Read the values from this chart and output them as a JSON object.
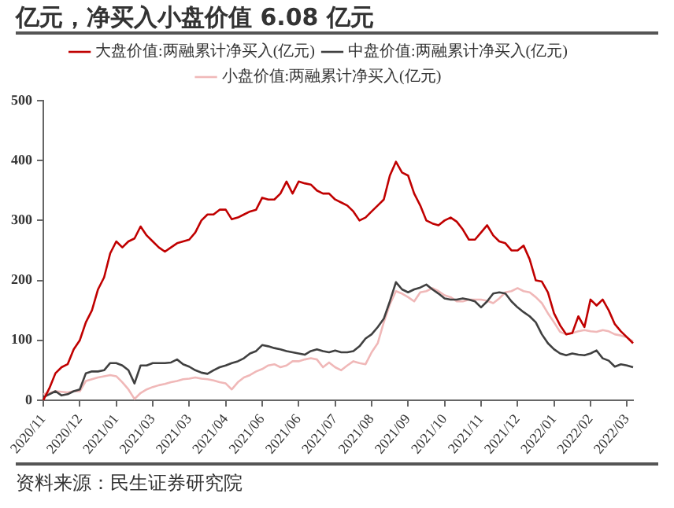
{
  "chart_data": {
    "type": "line",
    "title": "亿元，净买入小盘价值 6.08 亿元",
    "annotations": [
      "资料来源：民生证券研究院"
    ],
    "categories": [
      "2020/11",
      null,
      null,
      null,
      null,
      null,
      "2020/12",
      null,
      null,
      null,
      null,
      null,
      "2021/01",
      null,
      null,
      null,
      null,
      null,
      "2021/03",
      null,
      null,
      null,
      null,
      null,
      "2021/03",
      null,
      null,
      null,
      null,
      null,
      "2021/04",
      null,
      null,
      null,
      null,
      null,
      "2021/06",
      null,
      null,
      null,
      null,
      null,
      "2021/06",
      null,
      null,
      null,
      null,
      null,
      "2021/07",
      null,
      null,
      null,
      null,
      null,
      "2021/08",
      null,
      null,
      null,
      null,
      null,
      "2021/09",
      null,
      null,
      null,
      null,
      null,
      "2021/10",
      null,
      null,
      null,
      null,
      null,
      "2021/11",
      null,
      null,
      null,
      null,
      null,
      "2021/12",
      null,
      null,
      null,
      null,
      null,
      "2022/01",
      null,
      null,
      null,
      null,
      null,
      "2022/02",
      null,
      null,
      null,
      null,
      null,
      "2022/03",
      null
    ],
    "series": [
      {
        "name": "大盘价值:两融累计净买入(亿元)",
        "color": "#c00000",
        "values": [
          0,
          20,
          45,
          55,
          60,
          85,
          100,
          130,
          150,
          185,
          205,
          245,
          265,
          255,
          265,
          270,
          290,
          275,
          265,
          255,
          248,
          255,
          262,
          265,
          268,
          280,
          300,
          310,
          310,
          318,
          318,
          302,
          305,
          310,
          315,
          318,
          338,
          335,
          335,
          345,
          365,
          345,
          365,
          362,
          360,
          350,
          345,
          345,
          335,
          330,
          325,
          315,
          300,
          305,
          315,
          325,
          335,
          375,
          398,
          380,
          375,
          345,
          325,
          300,
          295,
          292,
          300,
          305,
          298,
          285,
          268,
          268,
          280,
          292,
          275,
          265,
          262,
          250,
          250,
          258,
          235,
          200,
          198,
          180,
          145,
          125,
          110,
          112,
          140,
          122,
          168,
          158,
          168,
          150,
          127,
          115,
          105,
          95
        ]
      },
      {
        "name": "中盘价值:两融累计净买入(亿元)",
        "color": "#404040",
        "values": [
          5,
          10,
          15,
          8,
          10,
          15,
          18,
          45,
          48,
          48,
          50,
          62,
          62,
          58,
          50,
          28,
          58,
          58,
          62,
          62,
          62,
          63,
          68,
          60,
          56,
          50,
          46,
          44,
          50,
          55,
          58,
          62,
          65,
          70,
          78,
          82,
          92,
          90,
          87,
          85,
          82,
          80,
          78,
          76,
          82,
          85,
          82,
          80,
          83,
          80,
          80,
          82,
          90,
          103,
          110,
          122,
          136,
          165,
          197,
          185,
          180,
          185,
          188,
          193,
          185,
          178,
          170,
          168,
          168,
          170,
          168,
          165,
          155,
          165,
          178,
          180,
          178,
          165,
          155,
          147,
          140,
          130,
          110,
          95,
          85,
          78,
          75,
          78,
          76,
          75,
          78,
          83,
          70,
          66,
          56,
          60,
          58,
          55
        ]
      },
      {
        "name": "小盘价值:两融累计净买入(亿元)",
        "color": "#f0b8b8",
        "values": [
          10,
          12,
          15,
          14,
          13,
          15,
          15,
          32,
          35,
          38,
          40,
          42,
          40,
          30,
          18,
          2,
          12,
          18,
          22,
          25,
          27,
          30,
          32,
          35,
          36,
          38,
          36,
          35,
          33,
          30,
          28,
          18,
          30,
          38,
          42,
          48,
          52,
          58,
          60,
          55,
          58,
          65,
          65,
          68,
          70,
          68,
          55,
          63,
          55,
          50,
          58,
          65,
          62,
          60,
          80,
          95,
          130,
          160,
          182,
          178,
          172,
          165,
          180,
          182,
          187,
          182,
          175,
          172,
          165,
          165,
          168,
          168,
          168,
          166,
          162,
          170,
          180,
          182,
          187,
          182,
          180,
          172,
          162,
          145,
          130,
          114,
          110,
          112,
          115,
          117,
          115,
          114,
          117,
          115,
          110,
          108,
          105,
          98
        ]
      }
    ],
    "ylim": [
      0,
      500
    ],
    "yticks": [
      0,
      100,
      200,
      300,
      400,
      500
    ],
    "legend": "top"
  }
}
